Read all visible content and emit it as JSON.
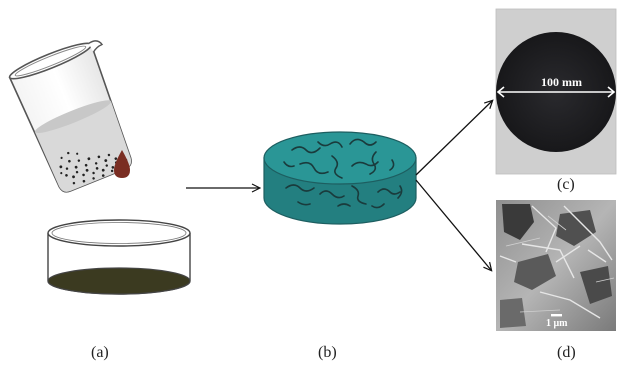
{
  "panels": {
    "a": {
      "label": "(a)"
    },
    "b": {
      "label": "(b)"
    },
    "c": {
      "label": "(c)",
      "measurement": "100 mm"
    },
    "d": {
      "label": "(d)",
      "scale_bar": "1 μm"
    }
  },
  "colors": {
    "disk_top": "#2a9696",
    "disk_side": "#237f80",
    "disk_outline": "#1d5e60",
    "fiber": "#1a3b3c",
    "liquid": "#3b3a20",
    "droplet": "#7a2d22",
    "membrane_photo": "#1f1f22",
    "arrow": "#111111"
  }
}
